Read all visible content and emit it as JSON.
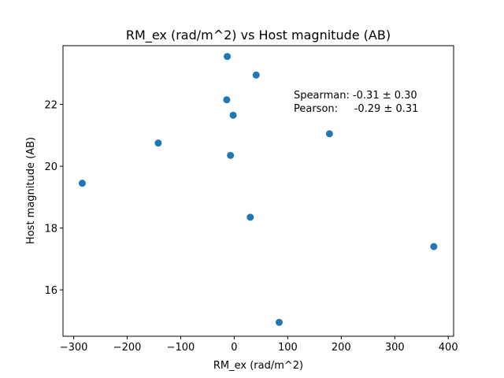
{
  "chart_data": {
    "type": "scatter",
    "title": "RM_ex (rad/m^2) vs Host magnitude (AB)",
    "xlabel": "RM_ex (rad/m^2)",
    "ylabel": "Host magnitude (AB)",
    "xlim": [
      -320,
      410
    ],
    "ylim": [
      14.5,
      23.9
    ],
    "xticks": [
      -300,
      -200,
      -100,
      0,
      100,
      200,
      300,
      400
    ],
    "yticks": [
      16,
      18,
      20,
      22
    ],
    "xtick_labels": [
      "−300",
      "−200",
      "−100",
      "0",
      "100",
      "200",
      "300",
      "400"
    ],
    "ytick_labels": [
      "16",
      "18",
      "20",
      "22"
    ],
    "grid": false,
    "marker_color": "#1f77b4",
    "points": [
      {
        "x": -284,
        "y": 19.45
      },
      {
        "x": -142,
        "y": 20.75
      },
      {
        "x": -13,
        "y": 23.55
      },
      {
        "x": -14,
        "y": 22.15
      },
      {
        "x": -7,
        "y": 20.35
      },
      {
        "x": -2,
        "y": 21.65
      },
      {
        "x": 30,
        "y": 18.35
      },
      {
        "x": 41,
        "y": 22.95
      },
      {
        "x": 84,
        "y": 14.95
      },
      {
        "x": 178,
        "y": 21.05
      },
      {
        "x": 373,
        "y": 17.4
      }
    ],
    "annotations": [
      "Spearman: -0.31 ± 0.30",
      "Pearson:     -0.29 ± 0.31"
    ]
  }
}
